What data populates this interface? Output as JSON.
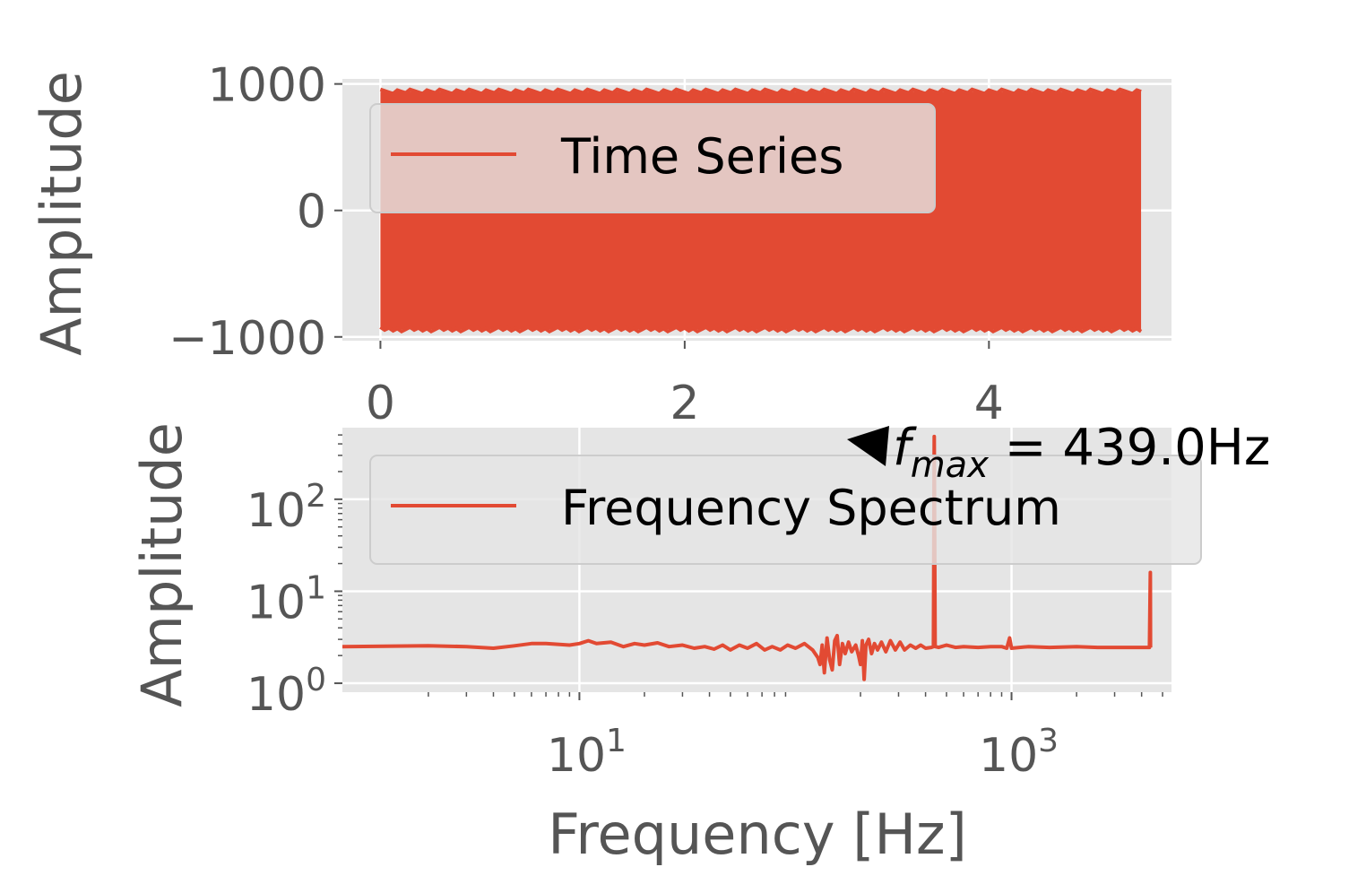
{
  "chart_data": [
    {
      "type": "area",
      "panel": "time-series",
      "ylabel": "Amplitude",
      "xlabel": "",
      "xlim": [
        -0.25,
        5.2
      ],
      "ylim": [
        -1030,
        1040
      ],
      "x_ticks": [
        "0",
        "2",
        "4"
      ],
      "x_tick_values": [
        0,
        2,
        4
      ],
      "y_ticks": [
        "1000",
        "0",
        "−1000"
      ],
      "y_tick_values": [
        1000,
        0,
        -1000
      ],
      "series": [
        {
          "name": "Time Series",
          "x_range": [
            0,
            5.0
          ],
          "envelope_max": 940,
          "envelope_min": -940,
          "color": "#E24A33"
        }
      ],
      "legend": {
        "placement": "upper-left",
        "entries": [
          "Time Series"
        ]
      },
      "grid": true
    },
    {
      "type": "line",
      "panel": "frequency-spectrum",
      "xscale": "log",
      "yscale": "log",
      "xlabel": "Frequency [Hz]",
      "ylabel": "Amplitude",
      "xlim": [
        0.8,
        5500
      ],
      "ylim": [
        0.8,
        600
      ],
      "x_ticks": [
        {
          "base": "10",
          "exp": "1",
          "value": 10
        },
        {
          "base": "10",
          "exp": "3",
          "value": 1000
        }
      ],
      "y_ticks": [
        {
          "base": "10",
          "exp": "2",
          "value": 100
        },
        {
          "base": "10",
          "exp": "1",
          "value": 10
        },
        {
          "base": "10",
          "exp": "0",
          "value": 1
        }
      ],
      "series": [
        {
          "name": "Frequency Spectrum",
          "color": "#E24A33",
          "points": [
            [
              0.8,
              2.5
            ],
            [
              2,
              2.55
            ],
            [
              3,
              2.5
            ],
            [
              4,
              2.4
            ],
            [
              5,
              2.55
            ],
            [
              6,
              2.7
            ],
            [
              7,
              2.7
            ],
            [
              9,
              2.6
            ],
            [
              10,
              2.7
            ],
            [
              11,
              2.9
            ],
            [
              12,
              2.7
            ],
            [
              14,
              2.8
            ],
            [
              16,
              2.5
            ],
            [
              18,
              2.7
            ],
            [
              20,
              2.6
            ],
            [
              23,
              2.75
            ],
            [
              26,
              2.5
            ],
            [
              30,
              2.6
            ],
            [
              34,
              2.4
            ],
            [
              38,
              2.5
            ],
            [
              42,
              2.35
            ],
            [
              46,
              2.6
            ],
            [
              50,
              2.3
            ],
            [
              55,
              2.6
            ],
            [
              60,
              2.4
            ],
            [
              66,
              2.7
            ],
            [
              72,
              2.3
            ],
            [
              78,
              2.5
            ],
            [
              85,
              2.3
            ],
            [
              92,
              2.6
            ],
            [
              100,
              2.4
            ],
            [
              110,
              2.7
            ],
            [
              120,
              2.3
            ],
            [
              127,
              1.9
            ],
            [
              130,
              1.6
            ],
            [
              133,
              2.6
            ],
            [
              136,
              1.3
            ],
            [
              140,
              3.1
            ],
            [
              144,
              1.8
            ],
            [
              148,
              1.4
            ],
            [
              152,
              2.9
            ],
            [
              156,
              3.3
            ],
            [
              160,
              1.6
            ],
            [
              165,
              2.7
            ],
            [
              170,
              2.1
            ],
            [
              176,
              2.8
            ],
            [
              182,
              2.2
            ],
            [
              190,
              2.6
            ],
            [
              196,
              2.0
            ],
            [
              200,
              1.6
            ],
            [
              204,
              2.9
            ],
            [
              208,
              1.1
            ],
            [
              212,
              2.6
            ],
            [
              218,
              3.0
            ],
            [
              225,
              2.1
            ],
            [
              232,
              2.7
            ],
            [
              240,
              2.3
            ],
            [
              250,
              2.8
            ],
            [
              262,
              2.2
            ],
            [
              275,
              2.9
            ],
            [
              290,
              2.3
            ],
            [
              305,
              2.8
            ],
            [
              320,
              2.3
            ],
            [
              340,
              2.6
            ],
            [
              360,
              2.4
            ],
            [
              380,
              2.6
            ],
            [
              400,
              2.4
            ],
            [
              425,
              2.45
            ],
            [
              435,
              2.5
            ],
            [
              439,
              480
            ],
            [
              443,
              2.5
            ],
            [
              460,
              2.45
            ],
            [
              500,
              2.6
            ],
            [
              550,
              2.45
            ],
            [
              600,
              2.5
            ],
            [
              700,
              2.45
            ],
            [
              800,
              2.5
            ],
            [
              900,
              2.5
            ],
            [
              950,
              2.4
            ],
            [
              980,
              3.1
            ],
            [
              1000,
              2.4
            ],
            [
              1200,
              2.5
            ],
            [
              1500,
              2.45
            ],
            [
              2000,
              2.5
            ],
            [
              2500,
              2.45
            ],
            [
              3000,
              2.45
            ],
            [
              3500,
              2.45
            ],
            [
              4000,
              2.45
            ],
            [
              4350,
              2.45
            ],
            [
              4390,
              16
            ],
            [
              4400,
              2.45
            ]
          ]
        }
      ],
      "annotation": {
        "text_prefix": "f",
        "subscript": "max",
        "text_suffix": " = 439.0Hz",
        "x": 439,
        "y": 480
      },
      "legend": {
        "placement": "upper-center",
        "entries": [
          "Frequency Spectrum"
        ]
      },
      "grid": true
    }
  ]
}
